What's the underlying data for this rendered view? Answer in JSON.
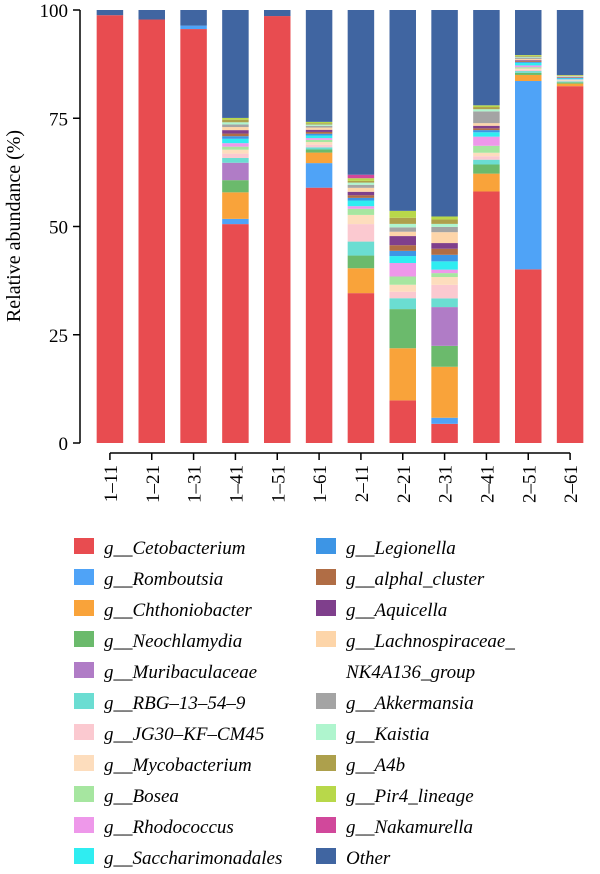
{
  "chart_data": {
    "type": "bar",
    "stacked": true,
    "ylabel": "Relative abundance (%)",
    "xlabel": "",
    "ylim": [
      0,
      100
    ],
    "yticks": [
      0,
      25,
      50,
      75,
      100
    ],
    "grid": false,
    "legend_position": "bottom",
    "categories": [
      "1–11",
      "1–21",
      "1–31",
      "1–41",
      "1–51",
      "1–61",
      "2–11",
      "2–21",
      "2–31",
      "2–41",
      "2–51",
      "2–61"
    ],
    "series": [
      {
        "name": "g__Cetobacterium",
        "color": "#E84C50",
        "values": [
          98.8,
          97.8,
          95.6,
          50.3,
          98.6,
          58.2,
          34.3,
          9.8,
          4.4,
          57.8,
          40.1,
          82.9
        ]
      },
      {
        "name": "g__Romboutsia",
        "color": "#4FA3F7",
        "values": [
          0.0,
          0.0,
          0.8,
          1.2,
          0.0,
          5.6,
          0.0,
          0.0,
          1.4,
          0.0,
          43.5,
          0.0
        ]
      },
      {
        "name": "g__Chthoniobacter",
        "color": "#F9A33A",
        "values": [
          0.0,
          0.0,
          0.0,
          6.1,
          0.0,
          2.4,
          5.7,
          12.0,
          11.7,
          4.1,
          1.4,
          0.6
        ]
      },
      {
        "name": "g__Neochlamydia",
        "color": "#6BBA6C",
        "values": [
          0.0,
          0.0,
          0.0,
          2.8,
          0.0,
          0.7,
          2.9,
          9.0,
          4.8,
          2.1,
          0.5,
          0.3
        ]
      },
      {
        "name": "g__Muribaculaceae",
        "color": "#B07CC6",
        "values": [
          0.0,
          0.0,
          0.0,
          4.0,
          0.0,
          0.0,
          0.0,
          0.0,
          8.9,
          0.0,
          0.0,
          0.0
        ]
      },
      {
        "name": "g__RBG–13–54–9",
        "color": "#6BDDD2",
        "values": [
          0.0,
          0.0,
          0.0,
          1.1,
          0.0,
          0.5,
          3.2,
          2.5,
          2.0,
          1.1,
          0.4,
          0.2
        ]
      },
      {
        "name": "g__JG30–KF–CM45",
        "color": "#FBC9D0",
        "values": [
          0.0,
          0.0,
          0.0,
          1.0,
          0.0,
          0.6,
          4.0,
          1.5,
          3.1,
          0.8,
          0.3,
          0.2
        ]
      },
      {
        "name": "g__Mycobacterium",
        "color": "#FDDDBD",
        "values": [
          0.0,
          0.0,
          0.0,
          0.9,
          0.0,
          0.6,
          2.1,
          1.6,
          1.8,
          0.8,
          0.3,
          0.1
        ]
      },
      {
        "name": "g__Bosea",
        "color": "#A6E6A0",
        "values": [
          0.0,
          0.0,
          0.0,
          0.7,
          0.0,
          0.5,
          1.4,
          1.9,
          0.9,
          1.6,
          0.3,
          0.1
        ]
      },
      {
        "name": "g__Rhodococcus",
        "color": "#EE98EA",
        "values": [
          0.0,
          0.0,
          0.0,
          0.8,
          0.0,
          0.4,
          0.6,
          3.1,
          0.8,
          2.1,
          0.4,
          0.1
        ]
      },
      {
        "name": "g__Saccharimonadales",
        "color": "#2FEDF1",
        "values": [
          0.0,
          0.0,
          0.0,
          1.0,
          0.0,
          0.6,
          1.3,
          1.6,
          1.9,
          1.0,
          0.6,
          0.2
        ]
      },
      {
        "name": "g__Legionella",
        "color": "#3D95E5",
        "values": [
          0.0,
          0.0,
          0.0,
          0.6,
          0.0,
          0.4,
          0.6,
          1.2,
          1.5,
          0.5,
          0.2,
          0.1
        ]
      },
      {
        "name": "g__alphal_cluster",
        "color": "#B06D45",
        "values": [
          0.0,
          0.0,
          0.0,
          0.6,
          0.0,
          0.4,
          0.6,
          1.3,
          1.4,
          0.4,
          0.2,
          0.1
        ]
      },
      {
        "name": "g__Aquicella",
        "color": "#7F3F8C",
        "values": [
          0.0,
          0.0,
          0.0,
          0.8,
          0.0,
          0.5,
          0.8,
          2.1,
          1.3,
          0.6,
          0.2,
          0.1
        ]
      },
      {
        "name": "g__Lachnospiraceae_NK4A136_group",
        "color": "#FDD5A9",
        "values": [
          0.0,
          0.0,
          0.0,
          0.7,
          0.0,
          0.5,
          0.9,
          1.0,
          2.5,
          0.6,
          0.3,
          0.1
        ]
      },
      {
        "name": "g__Akkermansia",
        "color": "#A4A4A4",
        "values": [
          0.0,
          0.0,
          0.0,
          0.6,
          0.0,
          0.4,
          0.7,
          1.0,
          1.2,
          2.7,
          0.3,
          0.1
        ]
      },
      {
        "name": "g__Kaistia",
        "color": "#AFF5CE",
        "values": [
          0.0,
          0.0,
          0.0,
          0.5,
          0.0,
          0.3,
          0.5,
          0.8,
          0.7,
          0.5,
          0.2,
          0.1
        ]
      },
      {
        "name": "g__A4b",
        "color": "#ADA04C",
        "values": [
          0.0,
          0.0,
          0.0,
          0.6,
          0.0,
          0.3,
          0.4,
          1.4,
          1.0,
          0.5,
          0.2,
          0.1
        ]
      },
      {
        "name": "g__Pir4_lineage",
        "color": "#B8D84A",
        "values": [
          0.0,
          0.0,
          0.0,
          0.4,
          0.0,
          0.3,
          0.6,
          1.6,
          0.7,
          0.4,
          0.2,
          0.1
        ]
      },
      {
        "name": "g__Nakamurella",
        "color": "#D1489B",
        "values": [
          0.0,
          0.0,
          0.0,
          0.0,
          0.0,
          0.0,
          0.8,
          0.0,
          0.0,
          0.0,
          0.0,
          0.0
        ]
      },
      {
        "name": "Other",
        "color": "#4065A1",
        "values": [
          1.2,
          2.2,
          3.6,
          24.8,
          1.4,
          25.5,
          37.7,
          46.2,
          47.4,
          21.9,
          10.4,
          15.1
        ]
      }
    ]
  },
  "legend": {
    "col1": [
      {
        "label": "g__Cetobacterium",
        "color": "#E84C50"
      },
      {
        "label": "g__Romboutsia",
        "color": "#4FA3F7"
      },
      {
        "label": "g__Chthoniobacter",
        "color": "#F9A33A"
      },
      {
        "label": "g__Neochlamydia",
        "color": "#6BBA6C"
      },
      {
        "label": "g__Muribaculaceae",
        "color": "#B07CC6"
      },
      {
        "label": "g__RBG–13–54–9",
        "color": "#6BDDD2"
      },
      {
        "label": "g__JG30–KF–CM45",
        "color": "#FBC9D0"
      },
      {
        "label": "g__Mycobacterium",
        "color": "#FDDDBD"
      },
      {
        "label": "g__Bosea",
        "color": "#A6E6A0"
      },
      {
        "label": "g__Rhodococcus",
        "color": "#EE98EA"
      },
      {
        "label": "g__Saccharimonadales",
        "color": "#2FEDF1"
      }
    ],
    "col2": [
      {
        "label": "g__Legionella",
        "color": "#3D95E5"
      },
      {
        "label": "g__alphal_cluster",
        "color": "#B06D45"
      },
      {
        "label": "g__Aquicella",
        "color": "#7F3F8C"
      },
      {
        "label": "g__Lachnospiraceae_ NK4A136_group",
        "color": "#FDD5A9",
        "wrap": true
      },
      {
        "label": "g__Akkermansia",
        "color": "#A4A4A4"
      },
      {
        "label": "g__Kaistia",
        "color": "#AFF5CE"
      },
      {
        "label": "g__A4b",
        "color": "#ADA04C"
      },
      {
        "label": "g__Pir4_lineage",
        "color": "#B8D84A"
      },
      {
        "label": "g__Nakamurella",
        "color": "#D1489B"
      },
      {
        "label": "Other",
        "color": "#4065A1"
      }
    ]
  }
}
